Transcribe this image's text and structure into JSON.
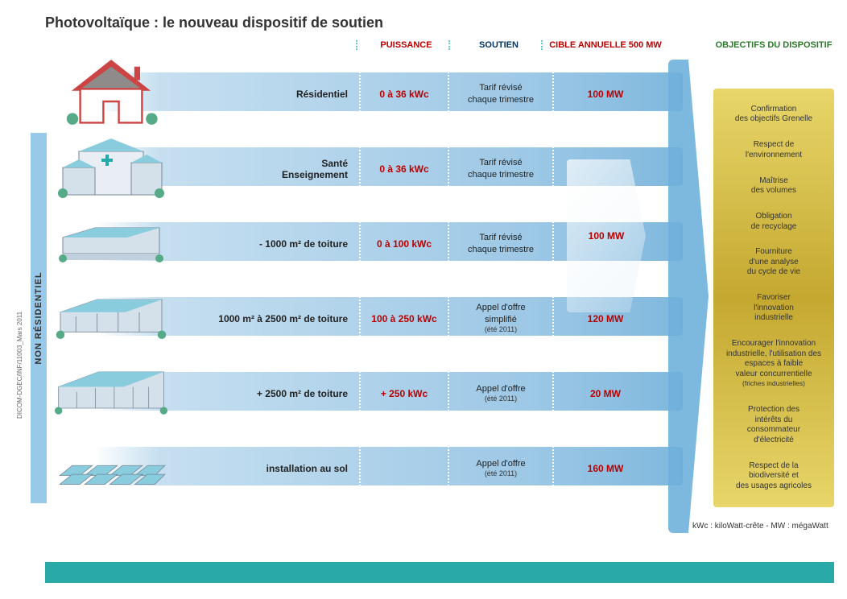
{
  "title": "Photovoltaïque : le nouveau dispositif de soutien",
  "headers": {
    "puissance": "PUISSANCE",
    "soutien": "SOUTIEN",
    "cible": "CIBLE ANNUELLE 500 MW",
    "objectifs": "OBJECTIFS DU DISPOSITIF"
  },
  "vert_label": "NON RÉSIDENTIEL",
  "rows": [
    {
      "label": "Résidentiel",
      "puissance": "0 à 36 kWc",
      "soutien": "Tarif révisé\nchaque trimestre",
      "soutien_sub": "",
      "cible": "100 MW"
    },
    {
      "label": "Santé\nEnseignement",
      "puissance": "0 à 36 kWc",
      "soutien": "Tarif révisé\nchaque trimestre",
      "soutien_sub": "",
      "cible": ""
    },
    {
      "label": "- 1000 m² de toiture",
      "puissance": "0 à 100 kWc",
      "soutien": "Tarif révisé\nchaque trimestre",
      "soutien_sub": "",
      "cible": ""
    },
    {
      "label": "1000 m² à 2500 m² de toiture",
      "puissance": "100 à 250 kWc",
      "soutien": "Appel d'offre\nsimplifié",
      "soutien_sub": "(été 2011)",
      "cible": "120 MW"
    },
    {
      "label": "+ 2500 m² de toiture",
      "puissance": "+ 250 kWc",
      "soutien": "Appel d'offre",
      "soutien_sub": "(été 2011)",
      "cible": "20 MW"
    },
    {
      "label": "installation au sol",
      "puissance": "",
      "soutien": "Appel d'offre",
      "soutien_sub": "(été 2011)",
      "cible": "160 MW"
    }
  ],
  "merged_cible": "100 MW",
  "objectifs": [
    "Confirmation\ndes objectifs Grenelle",
    "Respect de\nl'environnement",
    "Maîtrise\ndes volumes",
    "Obligation\nde recyclage",
    "Fourniture\nd'une analyse\ndu cycle de vie",
    "Favoriser\nl'innovation\nindustrielle",
    "Encourager l'innovation\nindustrielle, l'utilisation des\nespaces à faible\nvaleur concurrentielle\n(friches industrielles)",
    "Protection des\nintérêts du\nconsommateur\nd'électricité",
    "Respect de la\nbiodiversité et\ndes usages agricoles"
  ],
  "legend": "kWc : kiloWatt-crête  - MW : mégaWatt",
  "sideref": "DICOM-DGEC/INF/11003_Mars 2011",
  "colors": {
    "band_light": "#c6dff0",
    "band_dark": "#7fb8dd",
    "accent_red": "#b00000",
    "accent_blue": "#003366",
    "gold_light": "#e8d66a",
    "gold_dark": "#c4a830",
    "teal": "#2aa9a9"
  }
}
